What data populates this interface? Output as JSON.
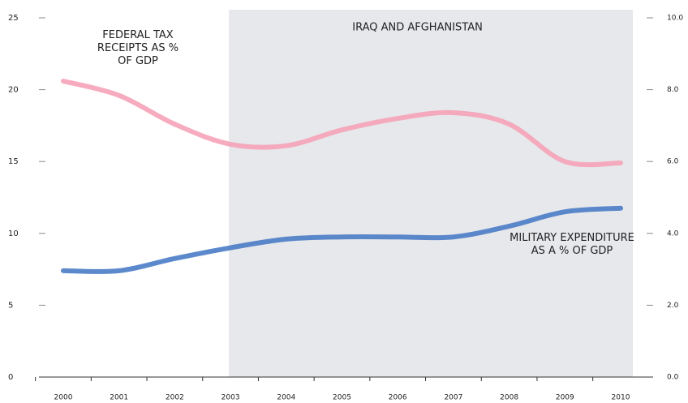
{
  "chart_data": {
    "type": "line",
    "categories": [
      "2000",
      "2001",
      "2002",
      "2003",
      "2004",
      "2005",
      "2006",
      "2007",
      "2008",
      "2009",
      "2010"
    ],
    "series": [
      {
        "name": "FEDERAL TAX RECEIPTS AS % OF GDP",
        "color": "#f5a3b7",
        "values": [
          20.6,
          19.6,
          17.6,
          16.2,
          16.1,
          17.2,
          18.0,
          18.4,
          17.6,
          15.0,
          14.9
        ]
      },
      {
        "name": "MILITARY EXPENDITURE AS A % OF GDP",
        "color": "#4a7cc6",
        "axis": "y2",
        "values": [
          2.96,
          2.96,
          3.3,
          3.6,
          3.84,
          3.9,
          3.9,
          3.9,
          4.2,
          4.6,
          4.7
        ]
      }
    ],
    "ylim": [
      0,
      25
    ],
    "yticks": [
      0,
      5,
      10,
      15,
      20,
      25
    ],
    "y2lim": [
      0,
      10
    ],
    "y2ticks": [
      {
        "value": 0,
        "label": "0.0"
      },
      {
        "value": 2,
        "label": "2.0"
      },
      {
        "value": 4,
        "label": "4.0"
      },
      {
        "value": 6,
        "label": "6.0"
      },
      {
        "value": 8,
        "label": "8.0"
      },
      {
        "value": 10,
        "label": "10.0"
      }
    ],
    "highlight": {
      "label": "IRAQ AND AFGHANISTAN",
      "from": "2003",
      "to": "2010"
    }
  }
}
